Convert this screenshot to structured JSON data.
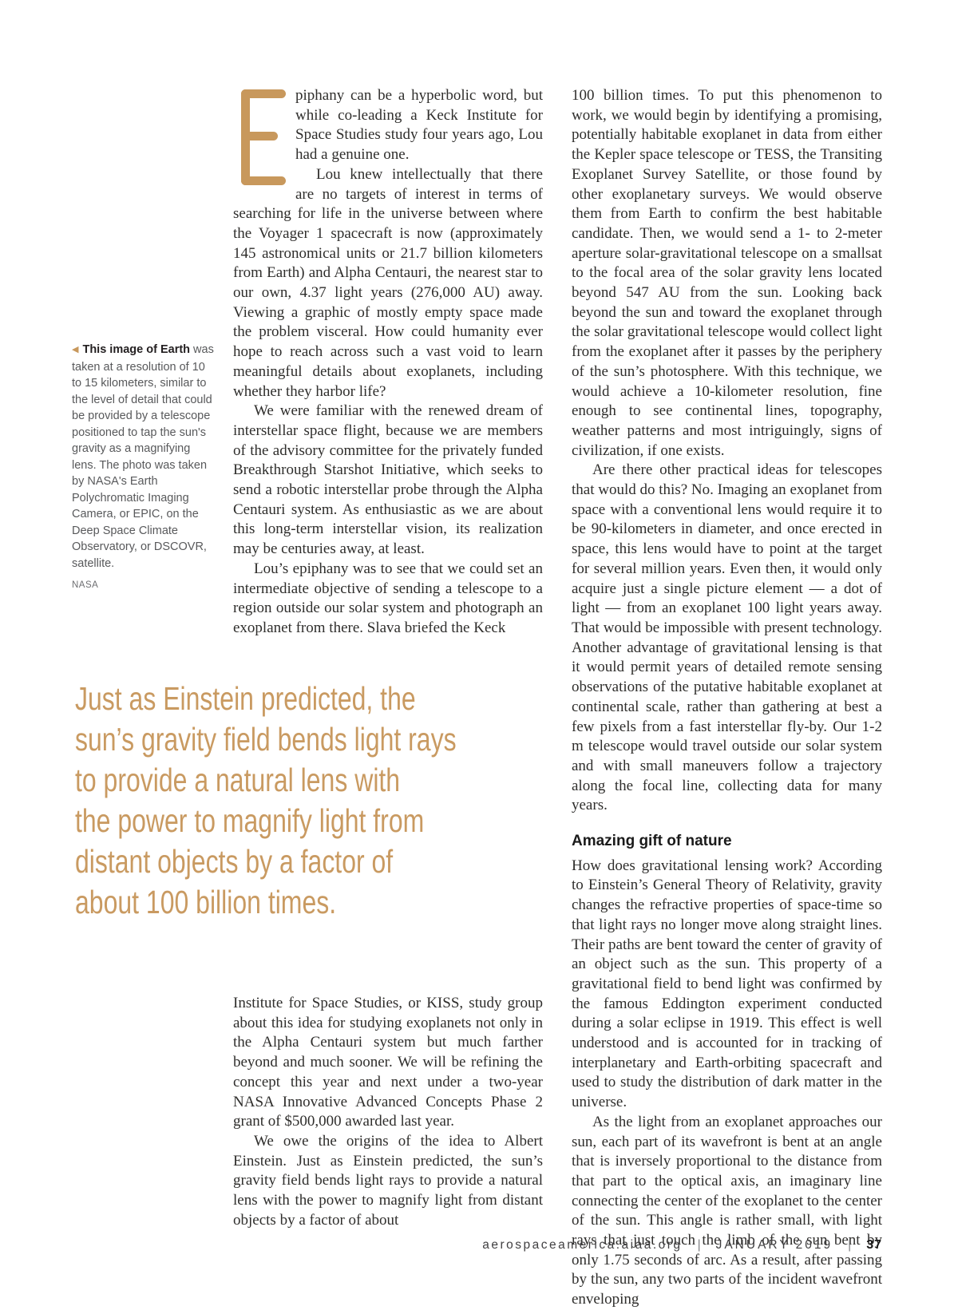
{
  "accent_color": "#c8985c",
  "drop_cap_letter": "E",
  "left_column": {
    "p1": "piphany can be a hyperbolic word, but while co-leading a Keck Institute for Space Studies study four years ago, Lou had a genuine one.",
    "p2": "Lou knew intellectually that there are no targets of interest in terms of searching for life in the universe between where the Voyager 1 spacecraft is now (approximately 145 astronomical units or 21.7 billion kilometers from Earth) and Alpha Centauri, the nearest star to our own, 4.37 light years (276,000 AU) away. Viewing a graphic of mostly empty space made the problem visceral. How could humanity ever hope to reach across such a vast void to learn meaningful details about exoplanets, including whether they harbor life?",
    "p3": "We were familiar with the renewed dream of interstellar space flight, because we are members of the advisory committee for the privately funded Breakthrough Starshot Initiative, which seeks to send a robotic interstellar probe through the Alpha Centauri system. As enthusiastic as we are about this long-term interstellar vision, its realization may be centuries away, at least.",
    "p4": "Lou’s epiphany was to see that we could set an intermediate objective of sending a telescope to a region outside our solar system and photograph an exoplanet from there. Slava briefed the Keck",
    "p5": "Institute for Space Studies, or KISS, study group about this idea for studying exoplanets not only in the Alpha Centauri system but much farther beyond and much sooner. We will be refining the concept this year and next under a two-year NASA Innovative Advanced Concepts Phase 2 grant of $500,000 awarded last year.",
    "p6": "We owe the origins of the idea to Albert Einstein. Just as Einstein predicted, the sun’s gravity field bends light rays to provide a natural lens with the power to magnify light from distant objects by a factor of about"
  },
  "right_column": {
    "p1": "100 billion times. To put this phenomenon to work, we would begin by identifying a promising, potentially habitable exoplanet in data from either the Kepler space telescope or TESS, the Transiting Exoplanet Survey Satellite, or those found by other exoplanetary surveys. We would observe them from Earth to confirm the best habitable candidate. Then, we would send a 1- to 2-meter aperture solar-gravitational telescope on a smallsat to the focal area of the solar gravity lens located beyond 547 AU from the sun. Looking back beyond the sun and toward the exoplanet through the solar gravitational telescope would collect light from the exoplanet after it passes by the periphery of the sun’s photosphere. With this technique, we would achieve a 10-kilometer resolution, fine enough to see continental lines, topography, weather patterns and most intriguingly, signs of civilization, if one exists.",
    "p2": "Are there other practical ideas for telescopes that would do this? No. Imaging an exoplanet from space with a conventional lens would require it to be 90-kilometers in diameter, and once erected in space, this lens would have to point at the target for several million years. Even then, it would only acquire just a single picture element — a dot of light — from an exoplanet 100 light years away. That would be impossible with present technology. Another advantage of gravitational lensing is that it would permit years of detailed remote sensing observations of the putative habitable exoplanet at continental scale, rather than gathering at best a few pixels from a fast interstellar fly-by. Our 1-2 m telescope would travel outside our solar system and with small maneuvers follow a trajectory along the focal line, collecting data for many years.",
    "heading": "Amazing gift of nature",
    "p3": "How does gravitational lensing work? According to Einstein’s General Theory of Relativity, gravity changes the refractive properties of space-time so that light rays no longer move along straight lines. Their paths are bent toward the center of gravity of an object such as the sun. This property of a gravitational field to bend light was confirmed by the famous Eddington experiment conducted during a solar eclipse in 1919. This effect is well understood and is accounted for in tracking of interplanetary and Earth-orbiting spacecraft and used to study the distribution of dark matter in the universe.",
    "p4": "As the light from an exoplanet approaches our sun, each part of its wavefront is bent at an angle that is inversely proportional to the distance from that part to the optical axis, an imaginary line connecting the center of the exoplanet to the center of the sun. This angle is rather small, with light rays that just touch the limb of the sun bent by only 1.75 seconds of arc. As a result, after passing by the sun, any two parts of the incident wavefront enveloping"
  },
  "sidebar_caption": {
    "marker": "◀",
    "lead_bold": "This image of Earth",
    "body": " was taken at a resolution of 10 to 15 kilometers, similar to the level of detail that could be provided by a telescope positioned to tap the sun's gravity as a magnifying lens. The photo was taken by NASA's Earth Polychromatic Imaging Camera, or EPIC, on the Deep Space Climate Observatory, or DSCOVR, satellite.",
    "credit": "NASA"
  },
  "pull_quote": {
    "lines": [
      "Just as Einstein predicted, the",
      "sun’s gravity field bends light rays",
      "to provide a natural lens with",
      "the power to magnify light from",
      "distant objects by a factor of",
      "about 100 billion times."
    ]
  },
  "footer": {
    "site": "aerospaceamerica.aiaa.org",
    "separator": "|",
    "issue": "JANUARY 2019",
    "page_number": "37"
  }
}
